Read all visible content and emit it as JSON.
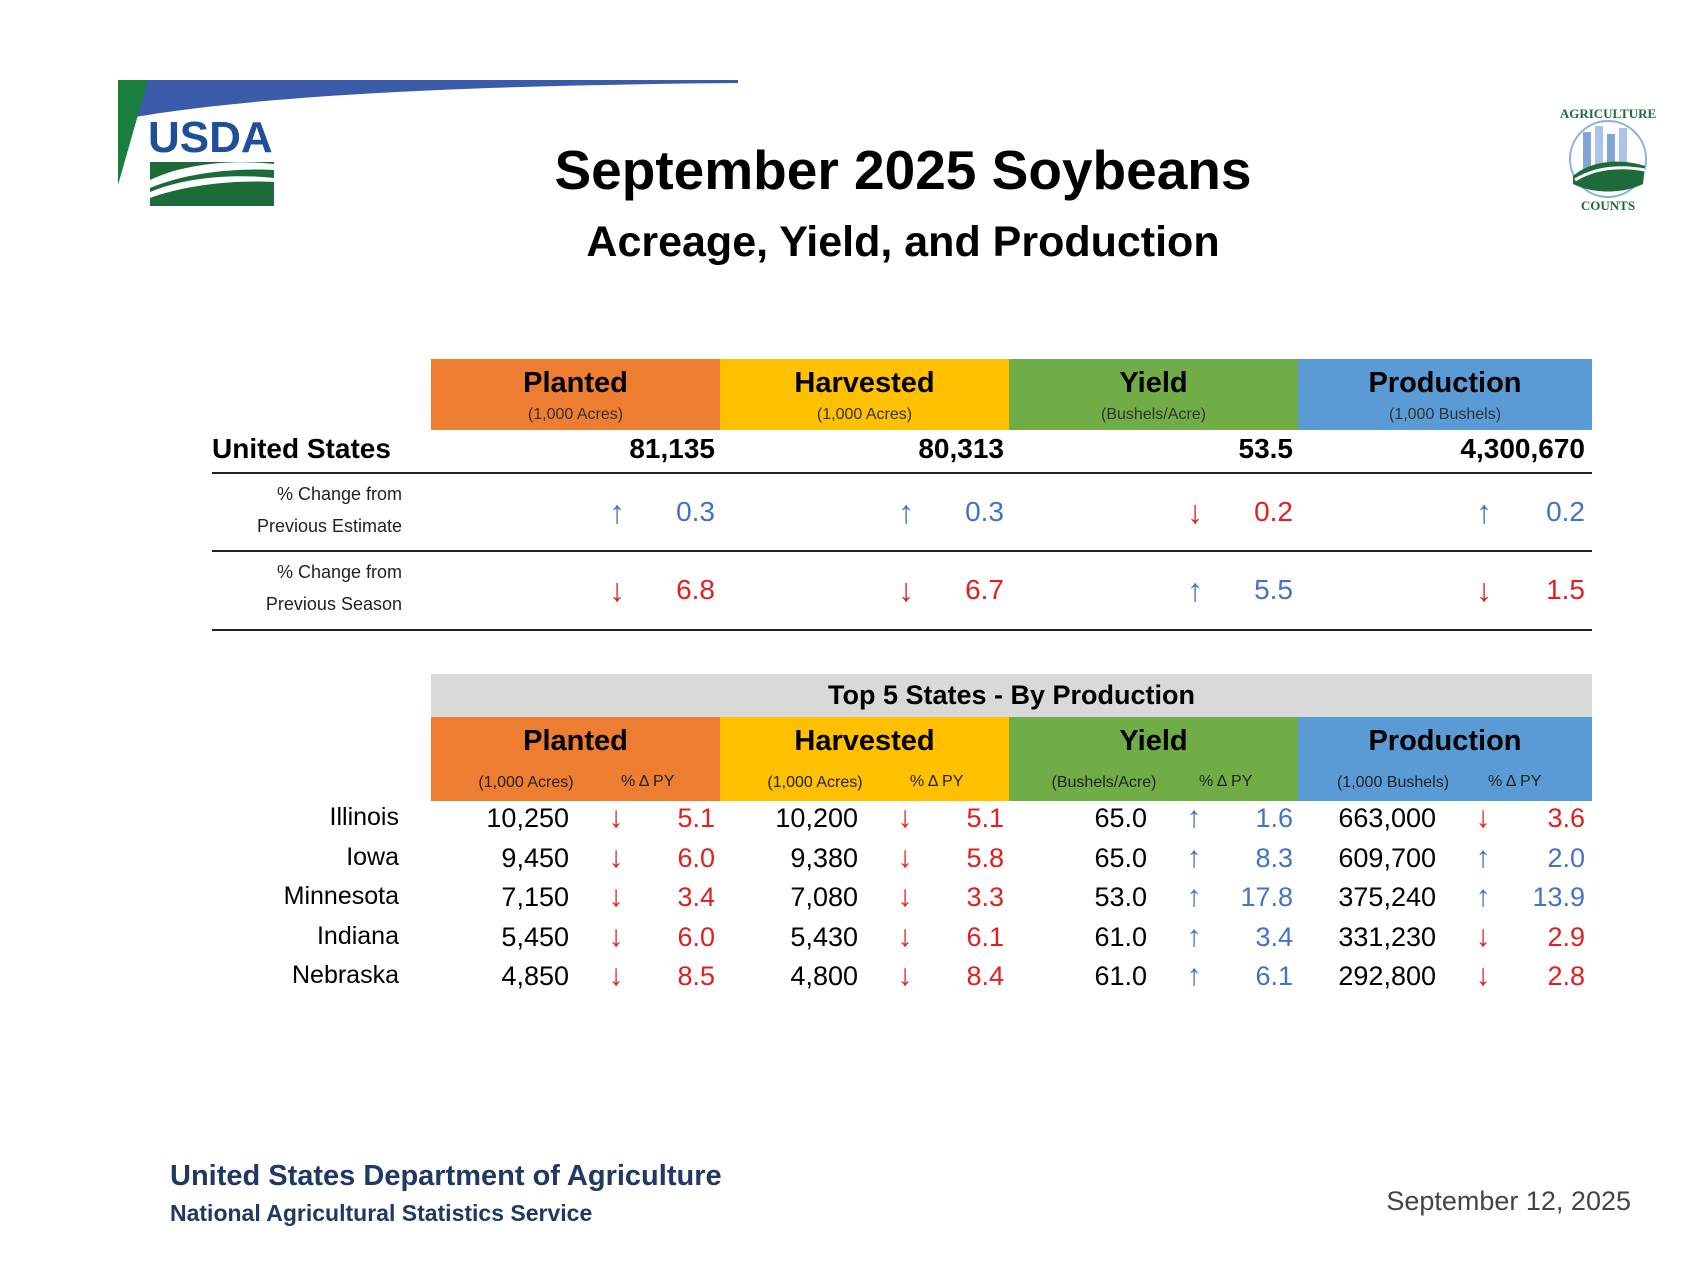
{
  "title": "September 2025 Soybeans",
  "subtitle": "Acreage, Yield, and Production",
  "logos": {
    "usda": "USDA",
    "ag_counts": "AGRICULTURE COUNTS"
  },
  "colors": {
    "planted": "#ED7D31",
    "harvested": "#FFC000",
    "yield": "#70AD47",
    "production": "#5B9BD5",
    "up": "#4472C4",
    "down": "#E02020",
    "top5_header": "#D9D9D9"
  },
  "columns": [
    {
      "title": "Planted",
      "unit": "(1,000 Acres)"
    },
    {
      "title": "Harvested",
      "unit": "(1,000 Acres)"
    },
    {
      "title": "Yield",
      "unit": "(Bushels/Acre)"
    },
    {
      "title": "Production",
      "unit": "(1,000 Bushels)"
    }
  ],
  "us": {
    "label": "United States",
    "values": [
      "81,135",
      "80,313",
      "53.5",
      "4,300,670"
    ],
    "change_prev_estimate": {
      "label_line1": "% Change from",
      "label_line2": "Previous Estimate",
      "items": [
        {
          "dir": "up",
          "value": "0.3"
        },
        {
          "dir": "up",
          "value": "0.3"
        },
        {
          "dir": "down",
          "value": "0.2"
        },
        {
          "dir": "up",
          "value": "0.2"
        }
      ]
    },
    "change_prev_season": {
      "label_line1": "% Change from",
      "label_line2": "Previous Season",
      "items": [
        {
          "dir": "down",
          "value": "6.8"
        },
        {
          "dir": "down",
          "value": "6.7"
        },
        {
          "dir": "up",
          "value": "5.5"
        },
        {
          "dir": "down",
          "value": "1.5"
        }
      ]
    }
  },
  "top5": {
    "title": "Top 5 States - By Production",
    "pct_label": "% Δ PY",
    "states": [
      {
        "name": "Illinois",
        "cells": [
          {
            "v": "10,250",
            "dir": "down",
            "p": "5.1"
          },
          {
            "v": "10,200",
            "dir": "down",
            "p": "5.1"
          },
          {
            "v": "65.0",
            "dir": "up",
            "p": "1.6"
          },
          {
            "v": "663,000",
            "dir": "down",
            "p": "3.6"
          }
        ]
      },
      {
        "name": "Iowa",
        "cells": [
          {
            "v": "9,450",
            "dir": "down",
            "p": "6.0"
          },
          {
            "v": "9,380",
            "dir": "down",
            "p": "5.8"
          },
          {
            "v": "65.0",
            "dir": "up",
            "p": "8.3"
          },
          {
            "v": "609,700",
            "dir": "up",
            "p": "2.0"
          }
        ]
      },
      {
        "name": "Minnesota",
        "cells": [
          {
            "v": "7,150",
            "dir": "down",
            "p": "3.4"
          },
          {
            "v": "7,080",
            "dir": "down",
            "p": "3.3"
          },
          {
            "v": "53.0",
            "dir": "up",
            "p": "17.8"
          },
          {
            "v": "375,240",
            "dir": "up",
            "p": "13.9"
          }
        ]
      },
      {
        "name": "Indiana",
        "cells": [
          {
            "v": "5,450",
            "dir": "down",
            "p": "6.0"
          },
          {
            "v": "5,430",
            "dir": "down",
            "p": "6.1"
          },
          {
            "v": "61.0",
            "dir": "up",
            "p": "3.4"
          },
          {
            "v": "331,230",
            "dir": "down",
            "p": "2.9"
          }
        ]
      },
      {
        "name": "Nebraska",
        "cells": [
          {
            "v": "4,850",
            "dir": "down",
            "p": "8.5"
          },
          {
            "v": "4,800",
            "dir": "down",
            "p": "8.4"
          },
          {
            "v": "61.0",
            "dir": "up",
            "p": "6.1"
          },
          {
            "v": "292,800",
            "dir": "down",
            "p": "2.8"
          }
        ]
      }
    ]
  },
  "footer": {
    "org": "United States Department of Agriculture",
    "service": "National Agricultural Statistics Service",
    "date": "September 12, 2025"
  }
}
